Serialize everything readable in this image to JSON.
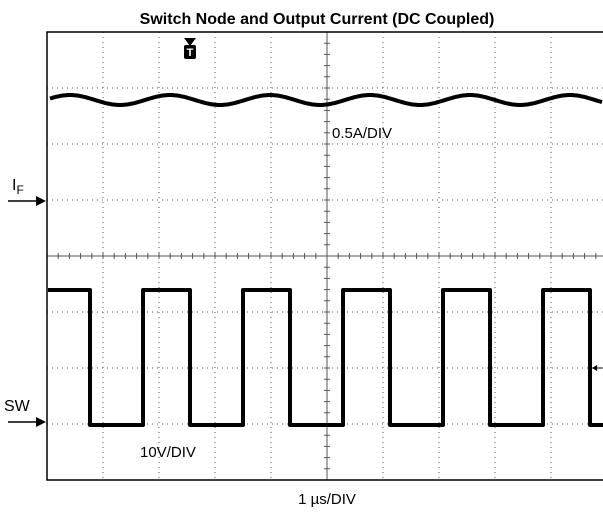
{
  "header": {
    "title": "Switch Node and Output Current (DC Coupled)"
  },
  "scope": {
    "current_scale": "0.5A/DIV",
    "voltage_scale": "10V/DIV",
    "time_scale": "1 µs/DIV",
    "channel_current": {
      "text": "I",
      "subscript": "F"
    },
    "channel_voltage": "SW",
    "trigger": "T"
  }
}
